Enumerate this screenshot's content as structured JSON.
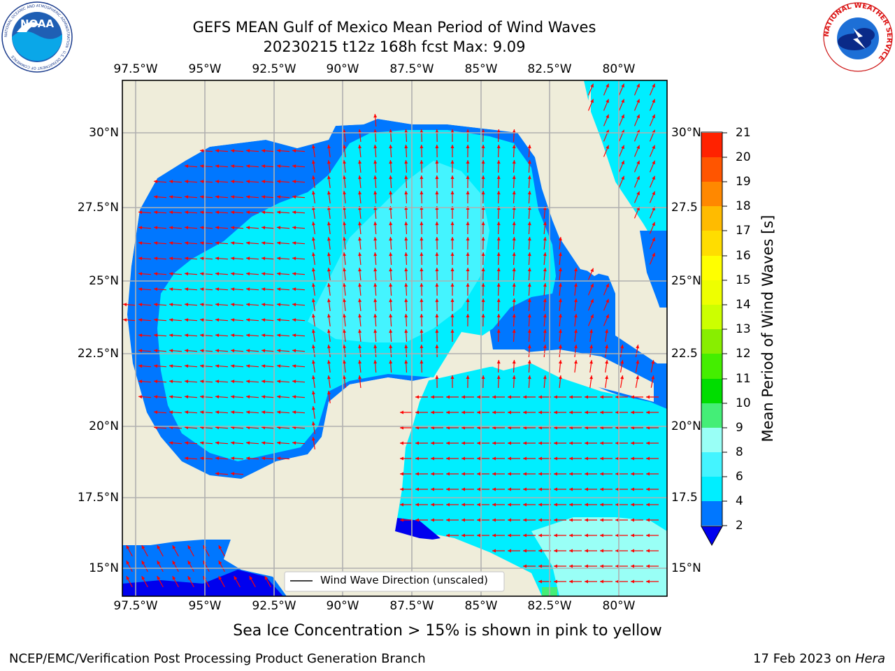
{
  "title": {
    "line1": "GEFS MEAN Gulf of Mexico Mean Period of Wind Waves",
    "line2": "20230215 t12z 168h fcst   Max: 9.09"
  },
  "logos": {
    "noaa": {
      "text": "NOAA",
      "ring_text": "NATIONAL OCEANIC AND ATMOSPHERIC ADMINISTRATION · U.S. DEPARTMENT OF COMMERCE"
    },
    "nws": {
      "ring_text": "NATIONAL WEATHER SERVICE"
    }
  },
  "map": {
    "lon_labels": [
      "97.5°W",
      "95°W",
      "92.5°W",
      "90°W",
      "87.5°W",
      "85°W",
      "82.5°W",
      "80°W"
    ],
    "lat_labels_left": [
      "30°N",
      "27.5°N",
      "25°N",
      "22.5°N",
      "20°N",
      "17.5°N",
      "15°N"
    ],
    "lat_labels_right": [
      "30°N",
      "27.5",
      "25°N",
      "22.5",
      "20°N",
      "17.5",
      "15°N"
    ],
    "legend_label": "Wind Wave Direction (unscaled)",
    "land_color": "#efedda",
    "arrow_color": "#ff0000",
    "shading": [
      {
        "name": "2-4 s",
        "color": "#0077ff"
      },
      {
        "name": "4-6 s",
        "color": "#00eeff"
      },
      {
        "name": "6-8 s",
        "color": "#44f4ff"
      },
      {
        "name": "8-9 s",
        "color": "#99fff6"
      },
      {
        "name": "< 2 s",
        "color": "#0000ee"
      },
      {
        "name": "9-10 s",
        "color": "#44ee77"
      }
    ]
  },
  "colorbar": {
    "title": "Mean Period of Wind Waves [s]",
    "ticks": [
      "2",
      "4",
      "6",
      "8",
      "9",
      "10",
      "11",
      "12",
      "13",
      "14",
      "15",
      "16",
      "17",
      "18",
      "19",
      "20",
      "21"
    ],
    "colors": [
      "#0077ff",
      "#00eeff",
      "#44f4ff",
      "#99fff6",
      "#44ee77",
      "#00dd00",
      "#44ee00",
      "#88ee00",
      "#ccff00",
      "#eeff00",
      "#ffff00",
      "#ffdd00",
      "#ffbb00",
      "#ff8800",
      "#ff5500",
      "#ff2200"
    ],
    "extend_color": "#0000ee"
  },
  "note": "Sea Ice Concentration > 15% is shown in pink to yellow",
  "footer": {
    "left": "NCEP/EMC/Verification Post Processing Product Generation Branch",
    "right_prefix": "17 Feb 2023 on ",
    "right_host": "Hera"
  }
}
